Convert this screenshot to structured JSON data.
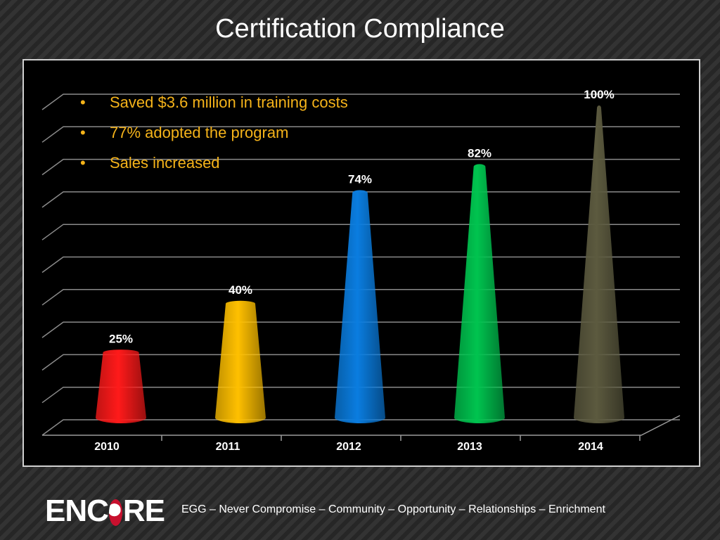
{
  "slide": {
    "title": "Certification Compliance",
    "bullets": [
      "Saved $3.6 million in training costs",
      "77% adopted the program",
      "Sales increased"
    ],
    "bullet_glyph": "•",
    "footer_logo": {
      "before": "ENC",
      "after": "RE"
    },
    "footer_tagline": "EGG – Never Compromise – Community – Opportunity – Relationships – Enrichment"
  },
  "chart_data": {
    "type": "bar",
    "style": "3d-cone",
    "title": "",
    "xlabel": "",
    "ylabel": "",
    "categories": [
      "2010",
      "2011",
      "2012",
      "2013",
      "2014"
    ],
    "values": [
      25,
      40,
      74,
      82,
      100
    ],
    "data_labels": [
      "25%",
      "40%",
      "74%",
      "82%",
      "100%"
    ],
    "colors": [
      "#ff1a1a",
      "#ffc000",
      "#0a7de0",
      "#00c44f",
      "#5c5a3f"
    ],
    "ylim": [
      0,
      100
    ],
    "grid": true,
    "legend": "none",
    "y_tick_labels": "hidden"
  }
}
